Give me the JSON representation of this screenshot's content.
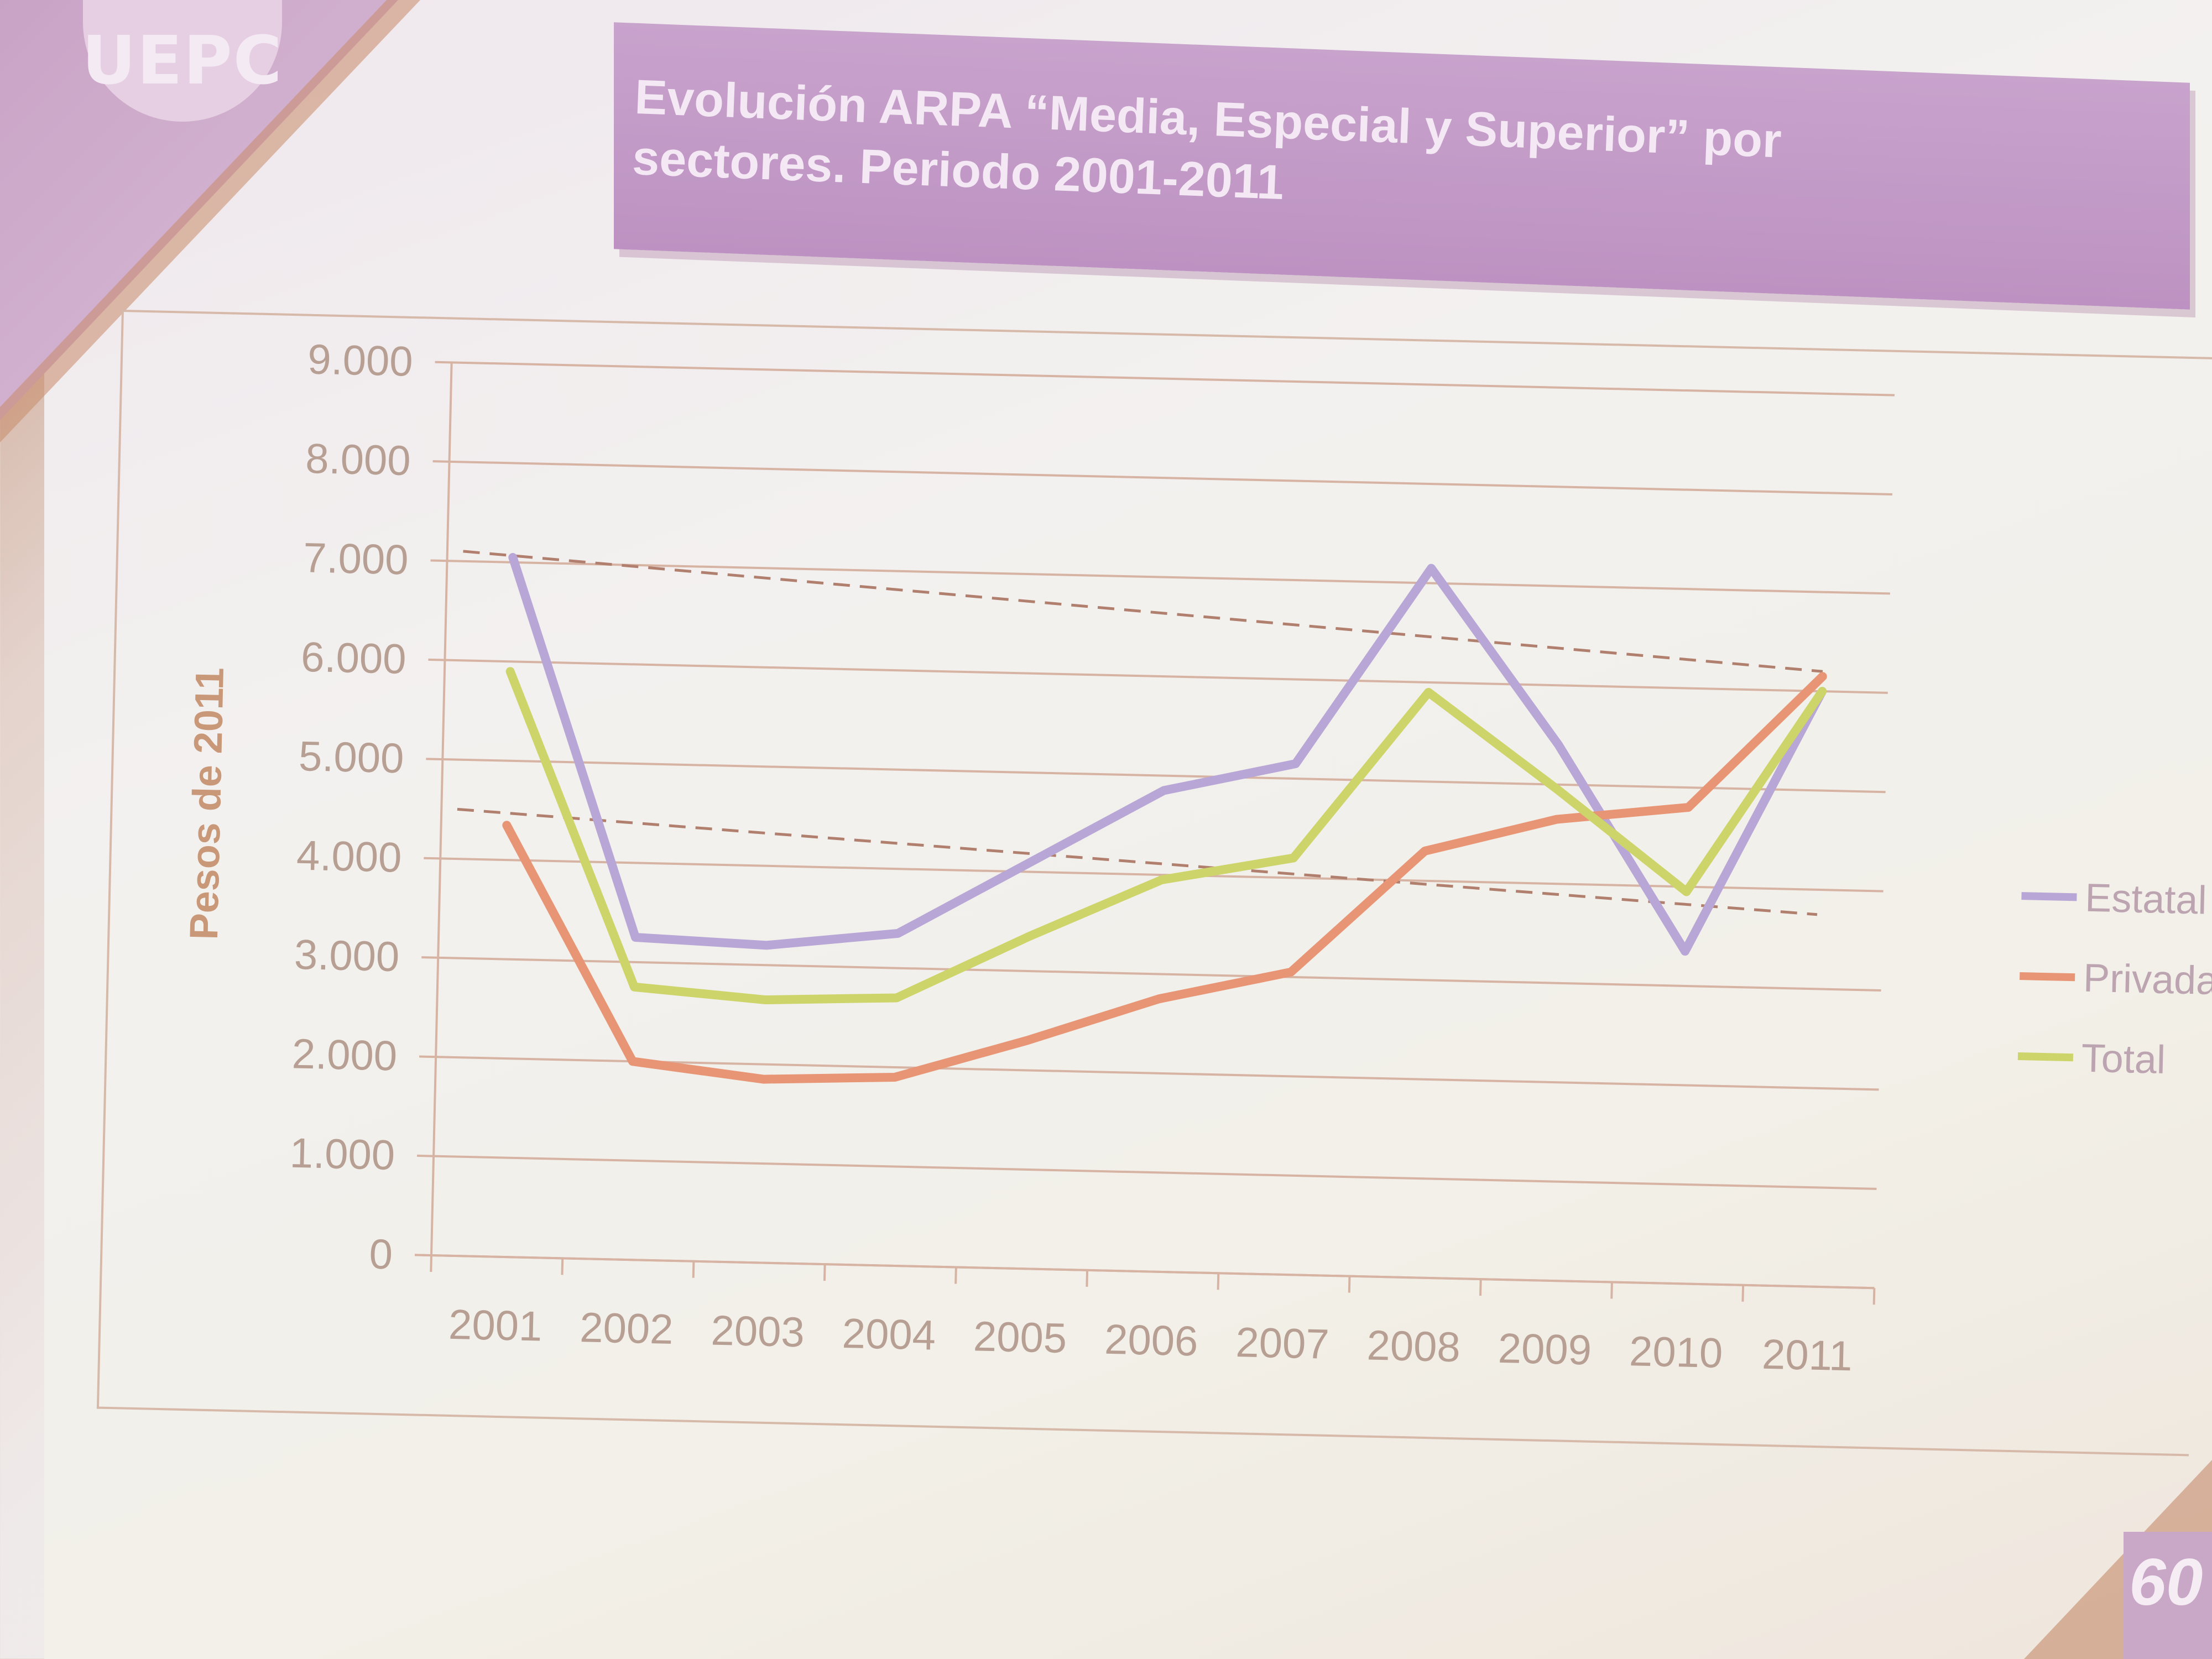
{
  "logo": {
    "text": "UEPC"
  },
  "slide": {
    "title_line1": "Evolución ARPA “Media, Especial y Superior” por",
    "title_line2": "sectores. Periodo 2001-2011",
    "page_number": "60"
  },
  "colors": {
    "estatal": "#b8a7d6",
    "privada": "#e79575",
    "total": "#cdd46a",
    "grid": "#d7b3a4",
    "trend": "#b07f6e"
  },
  "chart_data": {
    "type": "line",
    "title": "Evolución ARPA “Media, Especial y Superior” por sectores. Periodo 2001-2011",
    "xlabel": "",
    "ylabel": "Pesos de 2011",
    "ylim": [
      0,
      9000
    ],
    "yticks": [
      0,
      1000,
      2000,
      3000,
      4000,
      5000,
      6000,
      7000,
      8000,
      9000
    ],
    "ytick_labels": [
      "0",
      "1.000",
      "2.000",
      "3.000",
      "4.000",
      "5.000",
      "6.000",
      "7.000",
      "8.000",
      "9.000"
    ],
    "grid": true,
    "legend_position": "right",
    "categories": [
      "2001",
      "2002",
      "2003",
      "2004",
      "2005",
      "2006",
      "2007",
      "2008",
      "2009",
      "2010",
      "2011"
    ],
    "series": [
      {
        "name": "Estatal",
        "values": [
          7050,
          3250,
          3200,
          3350,
          4100,
          4850,
          5150,
          7150,
          5400,
          3350,
          6000
        ]
      },
      {
        "name": "Privada",
        "values": [
          4350,
          2000,
          1850,
          1900,
          2300,
          2750,
          3050,
          4300,
          4650,
          4800,
          6150
        ]
      },
      {
        "name": "Total",
        "values": [
          5900,
          2750,
          2650,
          2700,
          3350,
          3950,
          4200,
          5900,
          4950,
          3950,
          6000
        ]
      }
    ],
    "annotations": [
      {
        "type": "dashed-line",
        "from": [
          "2001",
          7100
        ],
        "to": [
          "2011",
          6200
        ]
      },
      {
        "type": "dashed-line",
        "from": [
          "2001",
          4500
        ],
        "to": [
          "2011",
          3750
        ]
      }
    ]
  }
}
